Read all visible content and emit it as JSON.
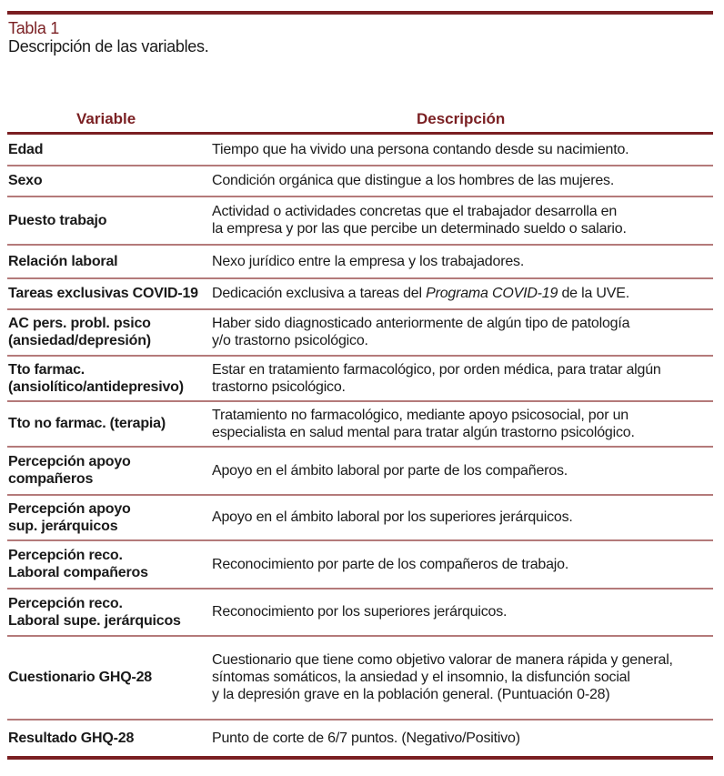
{
  "caption": {
    "label": "Tabla 1",
    "title": "Descripción de las variables."
  },
  "colors": {
    "accent": "#7a1f22",
    "row_divider": "#b47a7a"
  },
  "table": {
    "headers": [
      "Variable",
      "Descripción"
    ],
    "rows": [
      {
        "variable": [
          "Edad"
        ],
        "description": [
          "Tiempo que ha vivido una persona contando desde su nacimiento."
        ]
      },
      {
        "variable": [
          "Sexo"
        ],
        "description": [
          "Condición orgánica que distingue a los hombres de las mujeres."
        ]
      },
      {
        "variable": [
          "Puesto trabajo"
        ],
        "description": [
          "Actividad o actividades concretas que el trabajador desarrolla en",
          "la empresa y por las que percibe un determinado sueldo o salario."
        ]
      },
      {
        "variable": [
          "Relación laboral"
        ],
        "description": [
          "Nexo jurídico entre la empresa y los trabajadores."
        ]
      },
      {
        "variable": [
          "Tareas exclusivas COVID-19"
        ],
        "description": [
          [
            {
              "text": "Dedicación exclusiva a tareas del "
            },
            {
              "text": "Programa COVID-19",
              "italic": true
            },
            {
              "text": " de la UVE."
            }
          ]
        ]
      },
      {
        "variable": [
          "AC pers. probl. psico",
          "(ansiedad/depresión)"
        ],
        "description": [
          "Haber sido diagnosticado anteriormente de algún tipo de patología",
          "y/o trastorno psicológico."
        ]
      },
      {
        "variable": [
          "Tto farmac.",
          "(ansiolítico/antidepresivo)"
        ],
        "description": [
          "Estar en tratamiento farmacológico, por orden médica, para tratar algún",
          "trastorno psicológico."
        ]
      },
      {
        "variable": [
          "Tto no farmac. (terapia)"
        ],
        "description": [
          "Tratamiento no farmacológico, mediante apoyo psicosocial, por un",
          "especialista en salud mental para tratar algún trastorno psicológico."
        ]
      },
      {
        "variable": [
          "Percepción apoyo",
          "compañeros"
        ],
        "description": [
          "Apoyo en el ámbito laboral por parte de los compañeros."
        ]
      },
      {
        "variable": [
          "Percepción apoyo",
          "sup. jerárquicos"
        ],
        "description": [
          "Apoyo en el ámbito laboral por los superiores jerárquicos."
        ]
      },
      {
        "variable": [
          "Percepción reco.",
          "Laboral compañeros"
        ],
        "description": [
          "Reconocimiento por parte de los compañeros de trabajo."
        ]
      },
      {
        "variable": [
          "Percepción reco.",
          "Laboral supe. jerárquicos"
        ],
        "description": [
          "Reconocimiento por los superiores jerárquicos."
        ]
      },
      {
        "variable": [
          "Cuestionario GHQ-28"
        ],
        "description": [
          "Cuestionario que tiene como objetivo valorar de manera rápida y general,",
          "síntomas somáticos, la ansiedad y el insomnio, la disfunción social",
          "y la depresión grave en la población general. (Puntuación 0-28)"
        ]
      },
      {
        "variable": [
          "Resultado GHQ-28"
        ],
        "description": [
          "Punto de corte de 6/7 puntos. (Negativo/Positivo)"
        ]
      }
    ]
  }
}
